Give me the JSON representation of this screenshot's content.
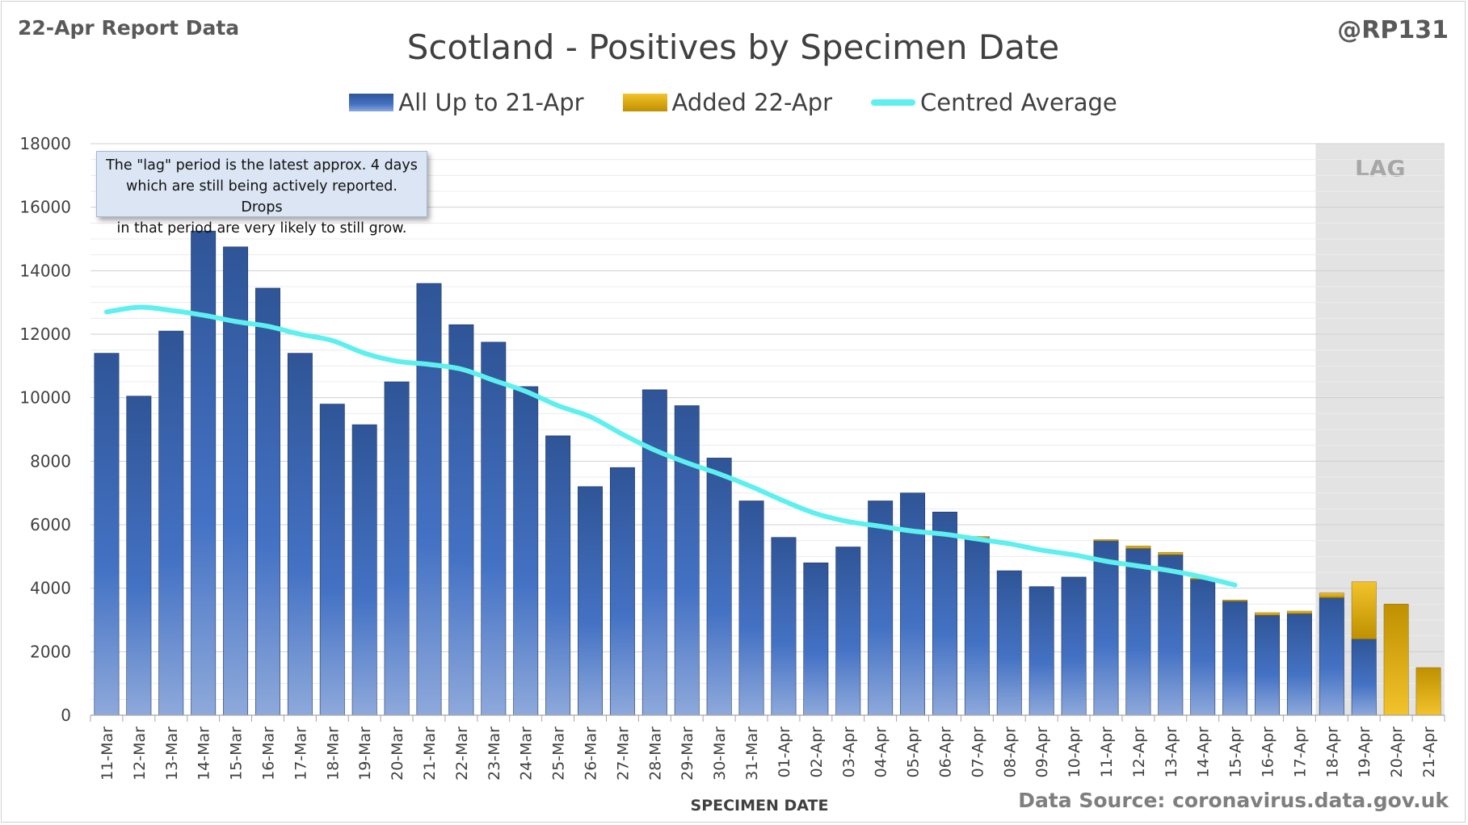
{
  "header": {
    "report_label": "22-Apr Report Data",
    "author": "@RP131",
    "title": "Scotland - Positives by Specimen Date"
  },
  "legend": {
    "all_label": "All Up to 21-Apr",
    "added_label": "Added 22-Apr",
    "avg_label": "Centred Average"
  },
  "annotation": {
    "lines": [
      "The \"lag\" period is the latest approx. 4 days",
      "which are still being actively reported.  Drops",
      "in that period are very likely to still grow."
    ]
  },
  "lag_label": "LAG",
  "source": "Data Source: coronavirus.data.gov.uk",
  "colors": {
    "bar_top": "#2f5597",
    "bar_mid": "#4472c4",
    "bar_bottom": "#8ea9db",
    "added_top": "#f2c32b",
    "added_bottom": "#bf9000",
    "average_line": "#5ef0ee",
    "lag_shade": "#e3e3e3"
  },
  "chart_data": {
    "type": "bar",
    "stacked": true,
    "xlabel": "SPECIMEN DATE",
    "ylabel": "",
    "ylim": [
      0,
      18000
    ],
    "yticks": [
      0,
      2000,
      4000,
      6000,
      8000,
      10000,
      12000,
      14000,
      16000,
      18000
    ],
    "grid": true,
    "legend_position": "top-center",
    "lag_region": [
      "18-Apr",
      "21-Apr"
    ],
    "categories": [
      "11-Mar",
      "12-Mar",
      "13-Mar",
      "14-Mar",
      "15-Mar",
      "16-Mar",
      "17-Mar",
      "18-Mar",
      "19-Mar",
      "20-Mar",
      "21-Mar",
      "22-Mar",
      "23-Mar",
      "24-Mar",
      "25-Mar",
      "26-Mar",
      "27-Mar",
      "28-Mar",
      "29-Mar",
      "30-Mar",
      "31-Mar",
      "01-Apr",
      "02-Apr",
      "03-Apr",
      "04-Apr",
      "05-Apr",
      "06-Apr",
      "07-Apr",
      "08-Apr",
      "09-Apr",
      "10-Apr",
      "11-Apr",
      "12-Apr",
      "13-Apr",
      "14-Apr",
      "15-Apr",
      "16-Apr",
      "17-Apr",
      "18-Apr",
      "19-Apr",
      "20-Apr",
      "21-Apr"
    ],
    "series": [
      {
        "name": "All Up to 21-Apr",
        "values": [
          11400,
          10050,
          12100,
          15250,
          14750,
          13450,
          11400,
          9800,
          9150,
          10500,
          13600,
          12300,
          11750,
          10350,
          8800,
          7200,
          7800,
          10250,
          9750,
          8100,
          6750,
          5600,
          4800,
          5300,
          6750,
          7000,
          6400,
          5600,
          4550,
          4050,
          4350,
          5500,
          5250,
          5050,
          4300,
          3600,
          3150,
          3200,
          3700,
          2400,
          0,
          0
        ]
      },
      {
        "name": "Added 22-Apr",
        "values": [
          0,
          0,
          0,
          0,
          0,
          0,
          0,
          0,
          0,
          0,
          0,
          0,
          0,
          0,
          0,
          0,
          0,
          0,
          0,
          0,
          0,
          0,
          0,
          0,
          0,
          0,
          0,
          30,
          0,
          0,
          0,
          30,
          80,
          80,
          20,
          30,
          80,
          80,
          150,
          1800,
          3500,
          1500
        ]
      },
      {
        "name": "Centred Average",
        "type": "line",
        "values": [
          12700,
          12850,
          12750,
          12600,
          12400,
          12250,
          12000,
          11800,
          11400,
          11150,
          11050,
          10900,
          10550,
          10200,
          9750,
          9400,
          8850,
          8350,
          7950,
          7600,
          7200,
          6750,
          6350,
          6100,
          5950,
          5800,
          5700,
          5550,
          5400,
          5200,
          5050,
          4850,
          4700,
          4550,
          4350,
          4100,
          null,
          null,
          null,
          null,
          null,
          null
        ]
      }
    ]
  }
}
